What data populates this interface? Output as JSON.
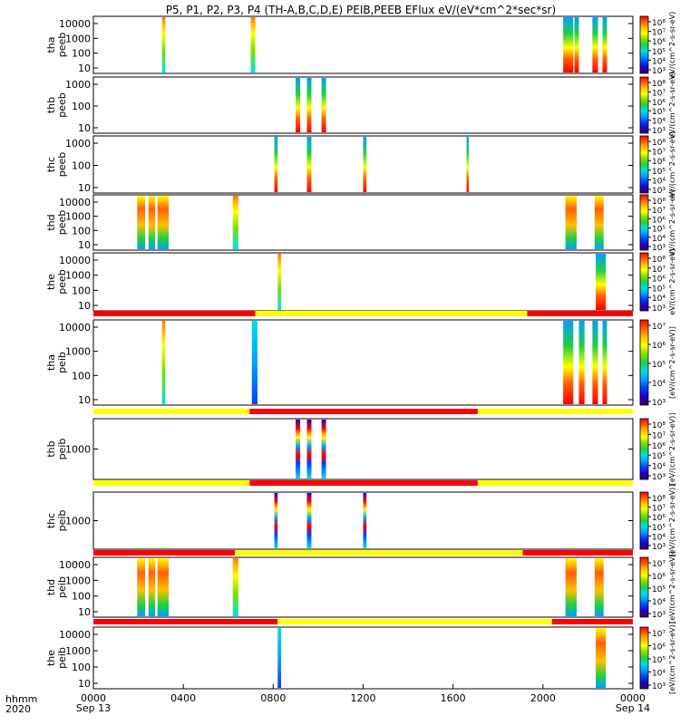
{
  "title": "P5, P1, P2, P3, P4 (TH-A,B,C,D,E) PEIB,PEEB EFlux eV/(eV*cm^2*sec*sr)",
  "colors": {
    "red": "#ff0000",
    "yellow": "#ffff00",
    "colormap": [
      "#3c0064",
      "#2000c8",
      "#0040ff",
      "#00a0ff",
      "#00e0e0",
      "#20d040",
      "#80e000",
      "#ffff00",
      "#ffc000",
      "#ff6000",
      "#ff0000"
    ]
  },
  "chart_data": {
    "type": "heatmap",
    "x_axis": {
      "label_line1": "hhmm",
      "label_line2": "2020",
      "unit": "hhmm",
      "range": [
        0,
        24
      ],
      "ticks": [
        {
          "x": 0,
          "label": "0000",
          "sub": "Sep 13"
        },
        {
          "x": 4,
          "label": "0400",
          "sub": ""
        },
        {
          "x": 8,
          "label": "0800",
          "sub": ""
        },
        {
          "x": 12,
          "label": "1200",
          "sub": ""
        },
        {
          "x": 16,
          "label": "1600",
          "sub": ""
        },
        {
          "x": 20,
          "label": "2000",
          "sub": ""
        },
        {
          "x": 24,
          "label": "0000",
          "sub": "Sep 14"
        }
      ]
    },
    "panels": [
      {
        "id": "tha-peeb",
        "label1": "tha",
        "label2": "peeb",
        "yticks": [
          "10000",
          "1000",
          "100",
          "10"
        ],
        "cbar_ticks": [
          "10⁸",
          "10⁷",
          "10⁶",
          "10⁵",
          "10⁴",
          "10³"
        ],
        "bursts": [
          {
            "start": 3.05,
            "end": 3.2,
            "style": "mid"
          },
          {
            "start": 7.0,
            "end": 7.2,
            "style": "mid"
          },
          {
            "start": 20.9,
            "end": 21.35,
            "style": "hot"
          },
          {
            "start": 21.4,
            "end": 21.6,
            "style": "hot"
          },
          {
            "start": 22.2,
            "end": 22.45,
            "style": "hot"
          },
          {
            "start": 22.65,
            "end": 22.85,
            "style": "hot"
          }
        ]
      },
      {
        "id": "thb-peeb",
        "label1": "thb",
        "label2": "peeb",
        "yticks": [
          "1000",
          "100",
          "10"
        ],
        "cbar_ticks": [
          "10⁸",
          "10⁷",
          "10⁶",
          "10⁵",
          "10⁴",
          "10³"
        ],
        "bursts": [
          {
            "start": 9.0,
            "end": 9.2,
            "style": "hot"
          },
          {
            "start": 9.5,
            "end": 9.7,
            "style": "hot"
          },
          {
            "start": 10.15,
            "end": 10.35,
            "style": "hot"
          }
        ]
      },
      {
        "id": "thc-peeb",
        "label1": "thc",
        "label2": "peeb",
        "yticks": [
          "1000",
          "100",
          "10"
        ],
        "cbar_ticks": [
          "10⁸",
          "10⁷",
          "10⁶",
          "10⁵",
          "10⁴",
          "10³"
        ],
        "bursts": [
          {
            "start": 8.05,
            "end": 8.2,
            "style": "hot"
          },
          {
            "start": 9.5,
            "end": 9.7,
            "style": "hot"
          },
          {
            "start": 12.0,
            "end": 12.15,
            "style": "hot"
          },
          {
            "start": 16.6,
            "end": 16.7,
            "style": "hot"
          }
        ]
      },
      {
        "id": "thd-peeb",
        "label1": "thd",
        "label2": "peeb",
        "yticks": [
          "10000",
          "1000",
          "100",
          "10"
        ],
        "cbar_ticks": [
          "10⁸",
          "10⁷",
          "10⁶",
          "10⁵",
          "10⁴",
          "10³"
        ],
        "bursts": [
          {
            "start": 1.95,
            "end": 2.3,
            "style": "warm"
          },
          {
            "start": 2.45,
            "end": 2.75,
            "style": "warm"
          },
          {
            "start": 2.85,
            "end": 3.35,
            "style": "warm"
          },
          {
            "start": 6.2,
            "end": 6.45,
            "style": "mid"
          },
          {
            "start": 21.0,
            "end": 21.5,
            "style": "warm"
          },
          {
            "start": 22.3,
            "end": 22.7,
            "style": "warm"
          }
        ]
      },
      {
        "id": "the-peeb",
        "label1": "the",
        "label2": "peeb",
        "yticks": [
          "10000",
          "1000",
          "100",
          "10"
        ],
        "cbar_ticks": [
          "10⁸",
          "10⁷",
          "10⁶",
          "10⁵",
          "10⁴",
          "10³"
        ],
        "bursts": [
          {
            "start": 8.2,
            "end": 8.35,
            "style": "mid"
          },
          {
            "start": 22.35,
            "end": 22.8,
            "style": "hot"
          }
        ]
      },
      {
        "id": "tha-peib",
        "label1": "tha",
        "label2": "peib",
        "yticks": [
          "10000",
          "1000",
          "100",
          "10"
        ],
        "cbar_ticks": [
          "10⁷",
          "10⁶",
          "10⁵",
          "10⁴",
          "10³"
        ],
        "mode_bar": [
          {
            "start": 0,
            "end": 7.2,
            "color": "red"
          },
          {
            "start": 7.2,
            "end": 19.3,
            "color": "yellow"
          },
          {
            "start": 19.3,
            "end": 24,
            "color": "red"
          }
        ],
        "bursts": [
          {
            "start": 3.05,
            "end": 3.2,
            "style": "mid"
          },
          {
            "start": 7.05,
            "end": 7.3,
            "style": "cool"
          },
          {
            "start": 20.9,
            "end": 21.35,
            "style": "hot"
          },
          {
            "start": 21.6,
            "end": 21.85,
            "style": "hot"
          },
          {
            "start": 22.2,
            "end": 22.45,
            "style": "hot"
          },
          {
            "start": 22.65,
            "end": 22.85,
            "style": "hot"
          }
        ]
      },
      {
        "id": "thb-peib",
        "label1": "thb",
        "label2": "peib",
        "yticks": [
          "1000"
        ],
        "cbar_ticks": [
          "10⁸",
          "10⁷",
          "10⁶",
          "10⁵",
          "10⁴",
          "10³"
        ],
        "mode_bar": [
          {
            "start": 0,
            "end": 6.95,
            "color": "yellow"
          },
          {
            "start": 6.95,
            "end": 17.1,
            "color": "red"
          },
          {
            "start": 17.1,
            "end": 24,
            "color": "yellow"
          }
        ],
        "bursts": [
          {
            "start": 9.0,
            "end": 9.2,
            "style": "mixed"
          },
          {
            "start": 9.5,
            "end": 9.7,
            "style": "mixed"
          },
          {
            "start": 10.15,
            "end": 10.35,
            "style": "mixed"
          }
        ]
      },
      {
        "id": "thc-peib",
        "label1": "thc",
        "label2": "peib",
        "yticks": [
          "1000"
        ],
        "cbar_ticks": [
          "10⁸",
          "10⁷",
          "10⁶",
          "10⁵",
          "10⁴",
          "10³"
        ],
        "mode_bar": [
          {
            "start": 0,
            "end": 6.95,
            "color": "yellow"
          },
          {
            "start": 6.95,
            "end": 17.1,
            "color": "red"
          },
          {
            "start": 17.1,
            "end": 24,
            "color": "yellow"
          }
        ],
        "bursts": [
          {
            "start": 8.05,
            "end": 8.2,
            "style": "mixed"
          },
          {
            "start": 9.5,
            "end": 9.7,
            "style": "mixed"
          },
          {
            "start": 12.0,
            "end": 12.15,
            "style": "mixed"
          }
        ]
      },
      {
        "id": "thd-peib",
        "label1": "thd",
        "label2": "peib",
        "yticks": [
          "10000",
          "1000",
          "100",
          "10"
        ],
        "cbar_ticks": [
          "10⁷",
          "10⁶",
          "10⁵",
          "10⁴",
          "10³"
        ],
        "mode_bar": [
          {
            "start": 0,
            "end": 6.3,
            "color": "red"
          },
          {
            "start": 6.3,
            "end": 19.1,
            "color": "yellow"
          },
          {
            "start": 19.1,
            "end": 24,
            "color": "red"
          }
        ],
        "bursts": [
          {
            "start": 1.95,
            "end": 2.3,
            "style": "warm"
          },
          {
            "start": 2.45,
            "end": 2.75,
            "style": "warm"
          },
          {
            "start": 2.85,
            "end": 3.35,
            "style": "warm"
          },
          {
            "start": 6.2,
            "end": 6.45,
            "style": "mid"
          },
          {
            "start": 21.0,
            "end": 21.5,
            "style": "warm"
          },
          {
            "start": 22.3,
            "end": 22.7,
            "style": "warm"
          }
        ]
      },
      {
        "id": "the-peib",
        "label1": "the",
        "label2": "peib",
        "yticks": [
          "10000",
          "1000",
          "100",
          "10"
        ],
        "cbar_ticks": [
          "10⁷",
          "10⁶",
          "10⁵",
          "10⁴",
          "10³"
        ],
        "mode_bar": [
          {
            "start": 0,
            "end": 8.2,
            "color": "red"
          },
          {
            "start": 8.2,
            "end": 20.4,
            "color": "yellow"
          },
          {
            "start": 20.4,
            "end": 24,
            "color": "red"
          }
        ],
        "bursts": [
          {
            "start": 8.2,
            "end": 8.35,
            "style": "cool"
          },
          {
            "start": 22.35,
            "end": 22.8,
            "style": "warm"
          }
        ]
      }
    ],
    "colorbar_label_ee": "eV/(cm^2-s-sr-eV)",
    "colorbar_label_ions": "[eV/(cm^2-s-sr-eV)]"
  }
}
